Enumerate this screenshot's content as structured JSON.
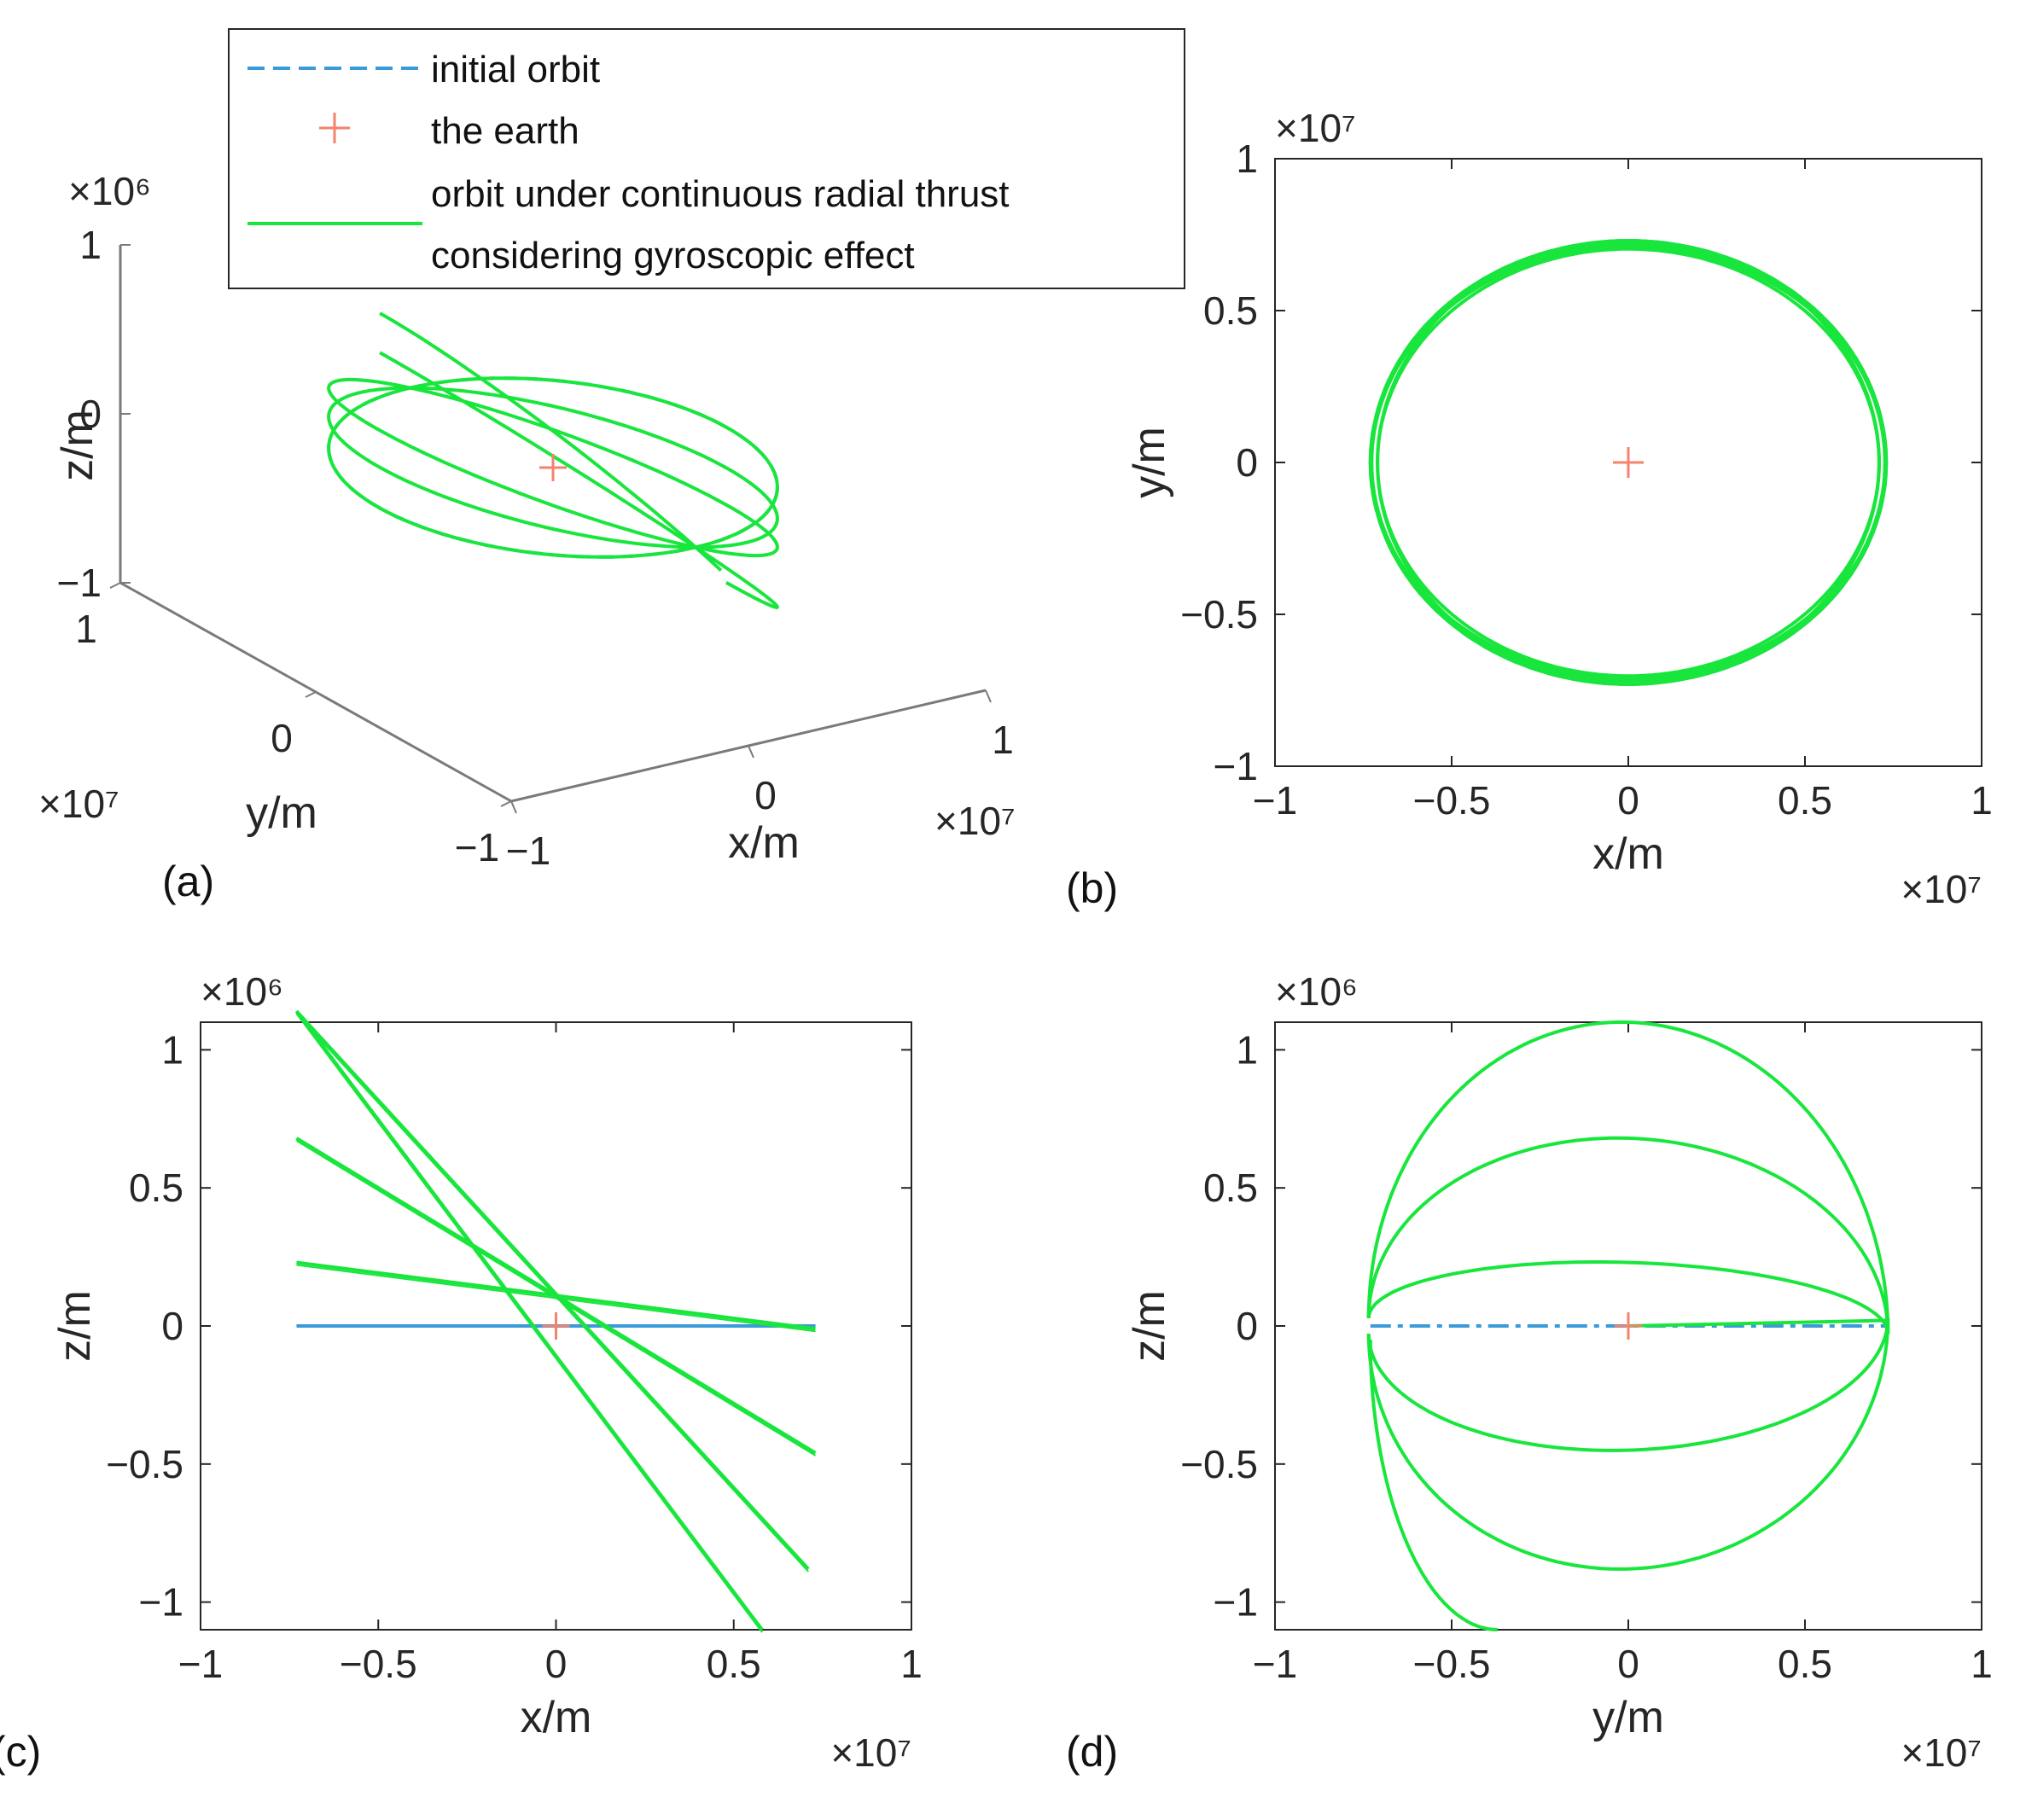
{
  "colors": {
    "initial": "#3b9ad9",
    "thrust": "#19e63c",
    "earth": "#f5826b",
    "axis": "#262626",
    "box3d": "#7a7a7a"
  },
  "legend": {
    "items": [
      {
        "name": "initial-orbit",
        "label": [
          "initial orbit"
        ],
        "style": "dashed"
      },
      {
        "name": "the-earth",
        "label": [
          "the earth"
        ],
        "style": "marker"
      },
      {
        "name": "thrust-orbit",
        "label": [
          "orbit under continuous radial  thrust",
          "considering gyroscopic effect"
        ],
        "style": "solid"
      }
    ]
  },
  "chart_data": [
    {
      "panel": "(a)",
      "type": "line",
      "projection": "3d",
      "xlabel": "x/m",
      "ylabel": "y/m",
      "zlabel": "z/m",
      "x_exponent": "×10⁷",
      "y_exponent": "×10⁷",
      "z_exponent": "×10⁶",
      "xlim": [
        -1,
        1
      ],
      "ylim": [
        -1,
        1
      ],
      "zlim": [
        -1,
        1
      ],
      "x_ticks": [
        "−1",
        "0",
        "1"
      ],
      "y_ticks": [
        "−1",
        "0",
        "1"
      ],
      "z_ticks": [
        "−1",
        "0",
        "1"
      ],
      "orbit": {
        "radius_x1e7": 0.73,
        "tilt_slopes_z1e6_per_x1e7": [
          0,
          -0.33,
          -0.63,
          -1.26,
          -1.58
        ],
        "end_z1e6": -1.1
      },
      "series": [
        {
          "name": "initial orbit",
          "style": "dashed",
          "description": "circle in z=0 plane"
        },
        {
          "name": "orbit under continuous radial thrust considering gyroscopic effect",
          "style": "solid"
        }
      ],
      "markers": [
        {
          "name": "the earth",
          "x": 0,
          "y": 0,
          "z": 0
        }
      ]
    },
    {
      "panel": "(b)",
      "type": "line",
      "xlabel": "x/m",
      "ylabel": "y/m",
      "x_exponent": "×10⁷",
      "y_exponent": "×10⁷",
      "xlim": [
        -1,
        1
      ],
      "ylim": [
        -1,
        1
      ],
      "x_ticks": [
        -1,
        -0.5,
        0,
        0.5,
        1
      ],
      "y_ticks": [
        -1,
        -0.5,
        0,
        0.5,
        1
      ],
      "x_tick_labels": [
        "−1",
        "−0.5",
        "0",
        "0.5",
        "1"
      ],
      "y_tick_labels": [
        "−1",
        "−0.5",
        "0",
        "0.5",
        "1"
      ],
      "orbit": {
        "radius_x1e7": 0.73,
        "inner_radius_x1e7": 0.71
      },
      "series": [
        {
          "name": "initial orbit",
          "style": "dashed"
        },
        {
          "name": "orbit under continuous radial thrust considering gyroscopic effect",
          "style": "solid"
        }
      ],
      "markers": [
        {
          "name": "the earth",
          "x": 0,
          "y": 0
        }
      ]
    },
    {
      "panel": "(c)",
      "type": "line",
      "xlabel": "x/m",
      "ylabel": "z/m",
      "x_exponent": "×10⁷",
      "y_exponent": "×10⁶",
      "xlim": [
        -1,
        1
      ],
      "ylim": [
        -1.1,
        1.1
      ],
      "x_ticks": [
        -1,
        -0.5,
        0,
        0.5,
        1
      ],
      "y_ticks": [
        -1,
        -0.5,
        0,
        0.5,
        1
      ],
      "x_tick_labels": [
        "−1",
        "−0.5",
        "0",
        "0.5",
        "1"
      ],
      "y_tick_labels": [
        "−1",
        "−0.5",
        "0",
        "0.5",
        "1"
      ],
      "series": [
        {
          "name": "initial orbit",
          "style": "solid",
          "x": [
            -0.73,
            0.73
          ],
          "z": [
            0,
            0
          ]
        },
        {
          "name": "orbit under continuous radial thrust considering gyroscopic effect",
          "style": "solid",
          "segments": [
            {
              "x": [
                -0.73,
                0.73
              ],
              "z": [
                0.23,
                -0.01
              ]
            },
            {
              "x": [
                -0.73,
                0.73
              ],
              "z": [
                0.68,
                -0.46
              ]
            },
            {
              "x": [
                -0.73,
                0.71
              ],
              "z": [
                1.14,
                -0.88
              ]
            },
            {
              "x": [
                -0.73,
                0.58
              ],
              "z": [
                1.14,
                -1.1
              ]
            }
          ]
        }
      ],
      "markers": [
        {
          "name": "the earth",
          "x": 0,
          "z": 0
        }
      ]
    },
    {
      "panel": "(d)",
      "type": "line",
      "xlabel": "y/m",
      "ylabel": "z/m",
      "x_exponent": "×10⁷",
      "y_exponent": "×10⁶",
      "xlim": [
        -1,
        1
      ],
      "ylim": [
        -1.1,
        1.1
      ],
      "x_ticks": [
        -1,
        -0.5,
        0,
        0.5,
        1
      ],
      "y_ticks": [
        -1,
        -0.5,
        0,
        0.5,
        1
      ],
      "x_tick_labels": [
        "−1",
        "−0.5",
        "0",
        "0.5",
        "1"
      ],
      "y_tick_labels": [
        "−1",
        "−0.5",
        "0",
        "0.5",
        "1"
      ],
      "series": [
        {
          "name": "initial orbit",
          "style": "dashed",
          "y": [
            -0.73,
            0.73
          ],
          "z": [
            0,
            0
          ]
        },
        {
          "name": "orbit under continuous radial thrust considering gyroscopic effect",
          "style": "solid",
          "half_ellipses": [
            {
              "peak_z": 1.1,
              "peak_y": 0
            },
            {
              "peak_z": 0.68,
              "peak_y": 0
            },
            {
              "peak_z": 0.23,
              "peak_y": 0
            },
            {
              "peak_z": -0.45,
              "peak_y": 0
            },
            {
              "peak_z": -0.88,
              "peak_y": 0
            }
          ],
          "tail": {
            "y": [
              -0.73,
              -0.37
            ],
            "z": [
              -0.05,
              -1.1
            ]
          }
        }
      ],
      "markers": [
        {
          "name": "the earth",
          "y": 0,
          "z": 0
        }
      ]
    }
  ]
}
